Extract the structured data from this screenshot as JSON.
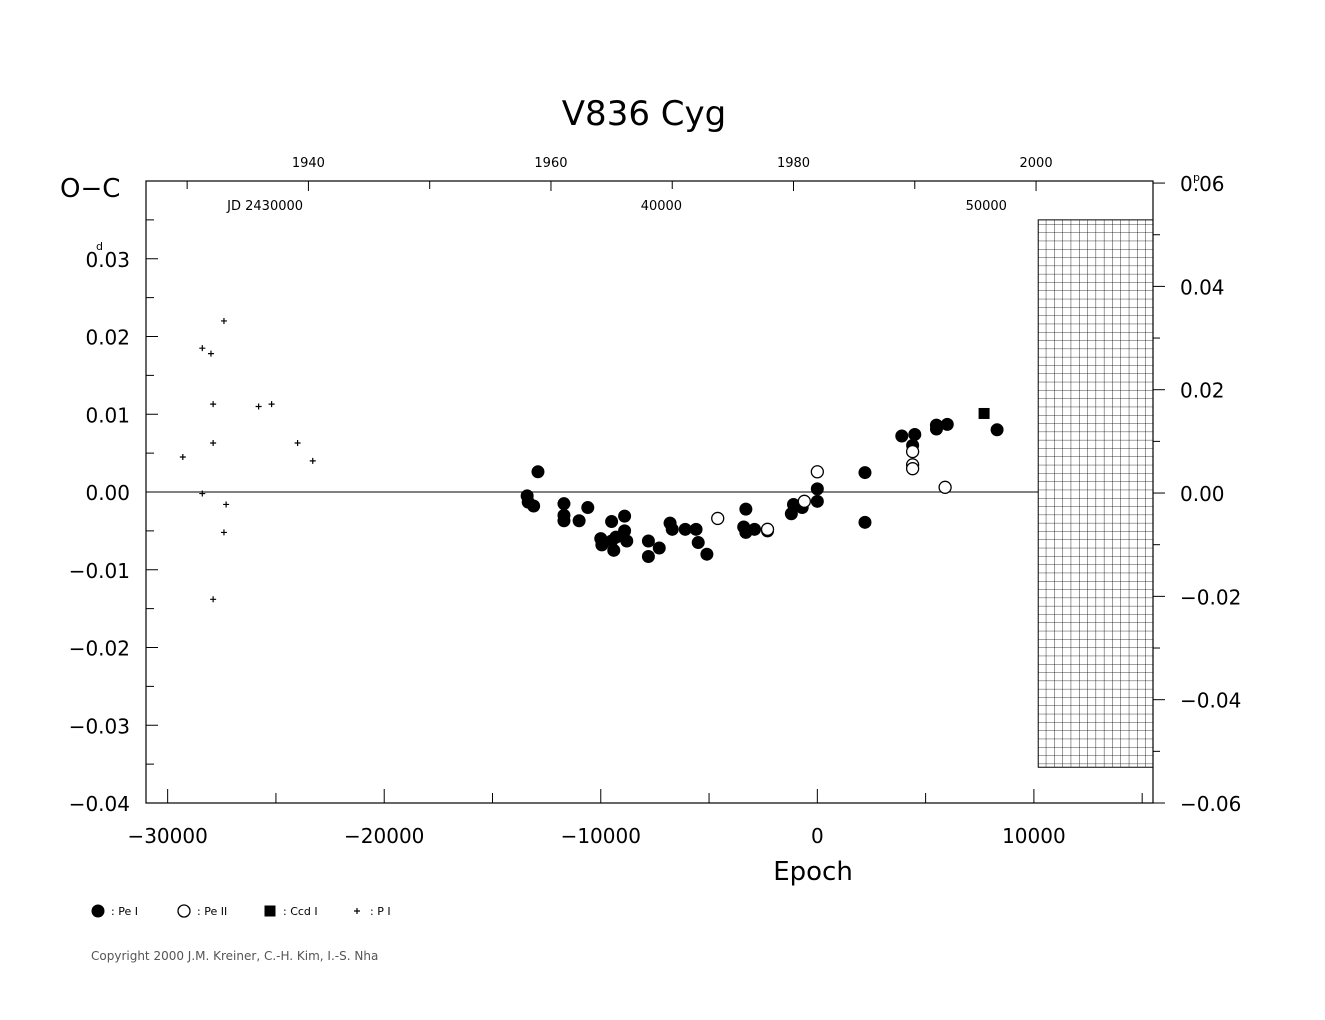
{
  "chart_data": {
    "type": "scatter",
    "title": "V836  Cyg",
    "xlabel": "Epoch",
    "ylabel": "O−C",
    "ylabel_unit": "d",
    "right_unit": "p",
    "top_year_label_list": [
      "1940",
      "1960",
      "1980",
      "2000"
    ],
    "top_year_epochs": [
      -23500,
      -12300,
      -1100,
      10100
    ],
    "jd_labels": [
      {
        "text": "JD  2430000",
        "epoch": -25500
      },
      {
        "text": "40000",
        "epoch": -7200
      },
      {
        "text": "50000",
        "epoch": 7800
      }
    ],
    "xlim": [
      -31000,
      15500
    ],
    "ylim": [
      -0.04,
      0.04
    ],
    "x_ticks": [
      -30000,
      -20000,
      -10000,
      0,
      10000
    ],
    "x_tick_labels": [
      "−30000",
      "−20000",
      "−10000",
      "0",
      "10000"
    ],
    "y_ticks": [
      0.03,
      0.02,
      0.01,
      0.0,
      -0.01,
      -0.02,
      -0.03,
      -0.04
    ],
    "y_tick_labels": [
      "0.03",
      "0.02",
      "0.01",
      "0.00",
      "−0.01",
      "−0.02",
      "−0.03",
      "−0.04"
    ],
    "y_right_ticks": [
      0.06,
      0.04,
      0.02,
      0.0,
      -0.02,
      -0.04,
      -0.06
    ],
    "y_right_tick_labels": [
      "0.06",
      "0.04",
      "0.02",
      "0.00",
      "−0.02",
      "−0.04",
      "−0.06"
    ],
    "y_right_lim": [
      -0.06,
      0.0604
    ],
    "hatched_region": {
      "x_from": 10200,
      "x_to": 15500,
      "y_from": -0.0354,
      "y_to": 0.035
    },
    "series": [
      {
        "name": ": Pe I",
        "marker": "filled-circle",
        "points": [
          [
            -13400,
            -0.0005
          ],
          [
            -13350,
            -0.0013
          ],
          [
            -13100,
            -0.0018
          ],
          [
            -12900,
            0.0026
          ],
          [
            -11700,
            -0.0015
          ],
          [
            -11700,
            -0.003
          ],
          [
            -11700,
            -0.0037
          ],
          [
            -11000,
            -0.0037
          ],
          [
            -10600,
            -0.002
          ],
          [
            -10000,
            -0.006
          ],
          [
            -9950,
            -0.0068
          ],
          [
            -9500,
            -0.0038
          ],
          [
            -9500,
            -0.0063
          ],
          [
            -9400,
            -0.0075
          ],
          [
            -9300,
            -0.0058
          ],
          [
            -8900,
            -0.005
          ],
          [
            -8900,
            -0.0031
          ],
          [
            -8800,
            -0.0063
          ],
          [
            -7800,
            -0.0083
          ],
          [
            -7800,
            -0.0063
          ],
          [
            -7300,
            -0.0072
          ],
          [
            -6800,
            -0.004
          ],
          [
            -6700,
            -0.0048
          ],
          [
            -6100,
            -0.0048
          ],
          [
            -5600,
            -0.0048
          ],
          [
            -5500,
            -0.0065
          ],
          [
            -5100,
            -0.008
          ],
          [
            -3400,
            -0.0045
          ],
          [
            -3300,
            -0.0022
          ],
          [
            -3300,
            -0.0052
          ],
          [
            -2900,
            -0.0048
          ],
          [
            -2300,
            -0.005
          ],
          [
            -1200,
            -0.0028
          ],
          [
            -1100,
            -0.0016
          ],
          [
            -700,
            -0.002
          ],
          [
            0,
            -0.0012
          ],
          [
            0,
            0.0004
          ],
          [
            2200,
            0.0025
          ],
          [
            2200,
            -0.0039
          ],
          [
            3900,
            0.0072
          ],
          [
            4400,
            0.006
          ],
          [
            4500,
            0.0074
          ],
          [
            5500,
            0.0081
          ],
          [
            5500,
            0.0086
          ],
          [
            6000,
            0.0087
          ],
          [
            8300,
            0.008
          ]
        ]
      },
      {
        "name": ": Pe II",
        "marker": "open-circle",
        "points": [
          [
            -4600,
            -0.0034
          ],
          [
            -2300,
            -0.0048
          ],
          [
            -600,
            -0.0012
          ],
          [
            0,
            0.0026
          ],
          [
            4400,
            0.0052
          ],
          [
            4400,
            0.0035
          ],
          [
            4400,
            0.003
          ],
          [
            5900,
            0.0006
          ]
        ]
      },
      {
        "name": ": Ccd I",
        "marker": "filled-square",
        "points": [
          [
            7700,
            0.0101
          ]
        ]
      },
      {
        "name": ": P I",
        "marker": "plus",
        "points": [
          [
            -29300,
            0.0045
          ],
          [
            -28400,
            0.0185
          ],
          [
            -28400,
            -0.0002
          ],
          [
            -28000,
            0.0178
          ],
          [
            -27900,
            0.0113
          ],
          [
            -27900,
            0.0063
          ],
          [
            -27900,
            -0.0138
          ],
          [
            -27400,
            0.022
          ],
          [
            -27400,
            -0.0052
          ],
          [
            -27300,
            -0.0016
          ],
          [
            -25800,
            0.011
          ],
          [
            -25200,
            0.0113
          ],
          [
            -24000,
            0.0063
          ],
          [
            -23300,
            0.004
          ]
        ]
      }
    ]
  },
  "copyright": "Copyright 2000 J.M. Kreiner, C.-H. Kim, I.-S. Nha"
}
